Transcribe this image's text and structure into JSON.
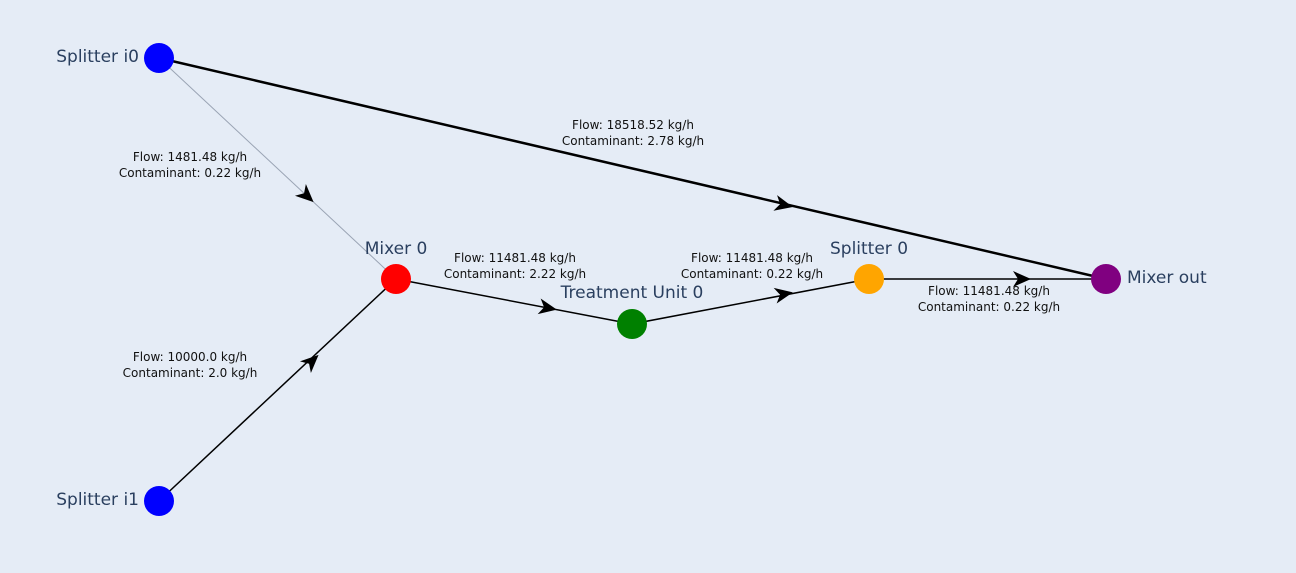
{
  "background_color": "#e5ecf6",
  "nodes": [
    {
      "id": "splitter-i0",
      "label": "Splitter i0",
      "color": "#0000ff"
    },
    {
      "id": "splitter-i1",
      "label": "Splitter i1",
      "color": "#0000ff"
    },
    {
      "id": "mixer-0",
      "label": "Mixer 0",
      "color": "#ff0000"
    },
    {
      "id": "treatment-unit-0",
      "label": "Treatment Unit 0",
      "color": "#008000"
    },
    {
      "id": "splitter-0",
      "label": "Splitter 0",
      "color": "#ffa500"
    },
    {
      "id": "mixer-out",
      "label": "Mixer out",
      "color": "#800080"
    }
  ],
  "edges": [
    {
      "id": "i0-to-mixer0",
      "from": "splitter-i0",
      "to": "mixer-0",
      "flow": "Flow: 1481.48 kg/h",
      "contaminant": "Contaminant: 0.22 kg/h"
    },
    {
      "id": "i1-to-mixer0",
      "from": "splitter-i1",
      "to": "mixer-0",
      "flow": "Flow: 10000.0 kg/h",
      "contaminant": "Contaminant: 2.0 kg/h"
    },
    {
      "id": "i0-to-mixerout",
      "from": "splitter-i0",
      "to": "mixer-out",
      "flow": "Flow: 18518.52 kg/h",
      "contaminant": "Contaminant: 2.78 kg/h"
    },
    {
      "id": "mixer0-to-tu0",
      "from": "mixer-0",
      "to": "treatment-unit-0",
      "flow": "Flow: 11481.48 kg/h",
      "contaminant": "Contaminant: 2.22 kg/h"
    },
    {
      "id": "tu0-to-splitter0",
      "from": "treatment-unit-0",
      "to": "splitter-0",
      "flow": "Flow: 11481.48 kg/h",
      "contaminant": "Contaminant: 0.22 kg/h"
    },
    {
      "id": "splitter0-to-mixerout",
      "from": "splitter-0",
      "to": "mixer-out",
      "flow": "Flow: 11481.48 kg/h",
      "contaminant": "Contaminant: 0.22 kg/h"
    }
  ]
}
